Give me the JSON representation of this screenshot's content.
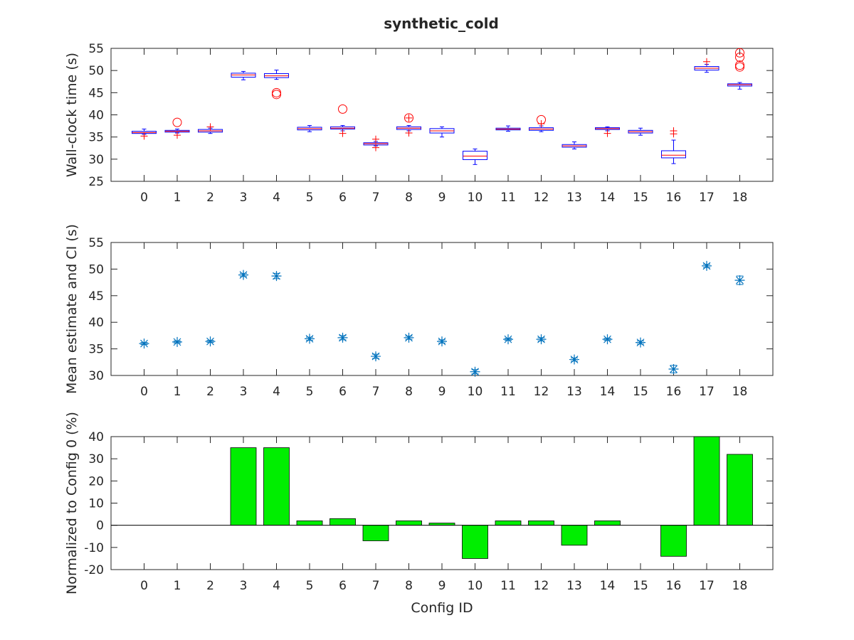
{
  "title": "synthetic_cold",
  "colors": {
    "box": "#0000ff",
    "median": "#ff0000",
    "outlier": "#ff0000",
    "mean": "#0072bd",
    "bar": "#00ee00",
    "axis": "#262626"
  },
  "chart_data": [
    {
      "type": "box",
      "title": "synthetic_cold",
      "xlabel": "",
      "ylabel": "Wall-clock time (s)",
      "xlim": [
        -1,
        19
      ],
      "ylim": [
        25,
        55
      ],
      "yticks": [
        25,
        30,
        35,
        40,
        45,
        50,
        55
      ],
      "categories": [
        "0",
        "1",
        "2",
        "3",
        "4",
        "5",
        "6",
        "7",
        "8",
        "9",
        "10",
        "11",
        "12",
        "13",
        "14",
        "15",
        "16",
        "17",
        "18"
      ],
      "boxes": [
        {
          "q1": 35.8,
          "median": 36.0,
          "q3": 36.3,
          "wl": 35.6,
          "wh": 36.8,
          "plus": [
            35.2
          ],
          "circle": []
        },
        {
          "q1": 36.1,
          "median": 36.3,
          "q3": 36.5,
          "wl": 35.9,
          "wh": 36.8,
          "plus": [
            35.4
          ],
          "circle": [
            38.3
          ]
        },
        {
          "q1": 36.1,
          "median": 36.4,
          "q3": 36.7,
          "wl": 35.8,
          "wh": 37.0,
          "plus": [
            37.3
          ],
          "circle": []
        },
        {
          "q1": 48.5,
          "median": 49.0,
          "q3": 49.4,
          "wl": 47.9,
          "wh": 49.8,
          "plus": [],
          "circle": []
        },
        {
          "q1": 48.4,
          "median": 48.8,
          "q3": 49.3,
          "wl": 48.0,
          "wh": 50.1,
          "plus": [],
          "circle": [
            45.0,
            44.6
          ]
        },
        {
          "q1": 36.6,
          "median": 36.9,
          "q3": 37.2,
          "wl": 36.2,
          "wh": 37.6,
          "plus": [],
          "circle": []
        },
        {
          "q1": 36.8,
          "median": 37.0,
          "q3": 37.3,
          "wl": 36.4,
          "wh": 37.6,
          "plus": [
            35.8
          ],
          "circle": [
            41.3
          ]
        },
        {
          "q1": 33.2,
          "median": 33.5,
          "q3": 33.7,
          "wl": 33.0,
          "wh": 34.0,
          "plus": [
            32.6,
            34.5
          ],
          "circle": []
        },
        {
          "q1": 36.7,
          "median": 37.0,
          "q3": 37.3,
          "wl": 36.4,
          "wh": 37.6,
          "plus": [
            35.9,
            39.3
          ],
          "circle": [
            39.3
          ]
        },
        {
          "q1": 35.9,
          "median": 36.4,
          "q3": 36.9,
          "wl": 35.0,
          "wh": 37.3,
          "plus": [],
          "circle": []
        },
        {
          "q1": 29.9,
          "median": 30.7,
          "q3": 31.8,
          "wl": 28.8,
          "wh": 32.3,
          "plus": [],
          "circle": []
        },
        {
          "q1": 36.6,
          "median": 36.8,
          "q3": 37.0,
          "wl": 36.3,
          "wh": 37.5,
          "plus": [],
          "circle": []
        },
        {
          "q1": 36.5,
          "median": 36.8,
          "q3": 37.1,
          "wl": 36.2,
          "wh": 37.5,
          "plus": [
            38.0
          ],
          "circle": [
            38.9
          ]
        },
        {
          "q1": 32.7,
          "median": 33.0,
          "q3": 33.3,
          "wl": 32.3,
          "wh": 33.9,
          "plus": [],
          "circle": []
        },
        {
          "q1": 36.7,
          "median": 36.9,
          "q3": 37.1,
          "wl": 36.4,
          "wh": 37.3,
          "plus": [
            35.8
          ],
          "circle": []
        },
        {
          "q1": 35.9,
          "median": 36.2,
          "q3": 36.5,
          "wl": 35.4,
          "wh": 37.0,
          "plus": [],
          "circle": []
        },
        {
          "q1": 30.3,
          "median": 30.9,
          "q3": 31.9,
          "wl": 29.0,
          "wh": 34.3,
          "plus": [
            36.4,
            35.7
          ],
          "circle": []
        },
        {
          "q1": 50.1,
          "median": 50.5,
          "q3": 50.9,
          "wl": 49.6,
          "wh": 51.4,
          "plus": [
            52.0
          ],
          "circle": []
        },
        {
          "q1": 46.5,
          "median": 46.8,
          "q3": 47.0,
          "wl": 45.8,
          "wh": 47.3,
          "plus": [],
          "circle": [
            54.0,
            53.0,
            51.2,
            50.8
          ]
        }
      ]
    },
    {
      "type": "scatter",
      "xlabel": "",
      "ylabel": "Mean estimate and CI (s)",
      "xlim": [
        -1,
        19
      ],
      "ylim": [
        30,
        55
      ],
      "yticks": [
        30,
        35,
        40,
        45,
        50,
        55
      ],
      "categories": [
        "0",
        "1",
        "2",
        "3",
        "4",
        "5",
        "6",
        "7",
        "8",
        "9",
        "10",
        "11",
        "12",
        "13",
        "14",
        "15",
        "16",
        "17",
        "18"
      ],
      "means": [
        36.0,
        36.3,
        36.4,
        48.9,
        48.7,
        36.9,
        37.1,
        33.6,
        37.1,
        36.4,
        30.7,
        36.8,
        36.8,
        33.0,
        36.8,
        36.2,
        31.2,
        50.6,
        47.9
      ],
      "ci_low": [
        35.8,
        36.1,
        36.2,
        48.6,
        48.2,
        36.6,
        36.7,
        33.2,
        36.8,
        36.1,
        30.3,
        36.6,
        36.5,
        32.7,
        36.6,
        35.9,
        30.5,
        50.3,
        47.1
      ],
      "ci_high": [
        36.2,
        36.5,
        36.6,
        49.2,
        49.2,
        37.2,
        37.5,
        34.0,
        37.4,
        36.7,
        31.1,
        37.0,
        37.1,
        33.3,
        37.0,
        36.5,
        31.9,
        50.9,
        48.7
      ]
    },
    {
      "type": "bar",
      "xlabel": "Config ID",
      "ylabel": "Normalized to Config 0 (%)",
      "xlim": [
        -1,
        19
      ],
      "ylim": [
        -20,
        40
      ],
      "yticks": [
        -20,
        -10,
        0,
        10,
        20,
        30,
        40
      ],
      "categories": [
        "0",
        "1",
        "2",
        "3",
        "4",
        "5",
        "6",
        "7",
        "8",
        "9",
        "10",
        "11",
        "12",
        "13",
        "14",
        "15",
        "16",
        "17",
        "18"
      ],
      "values": [
        0,
        0,
        0,
        35,
        35,
        2,
        3,
        -7,
        2,
        1,
        -15,
        2,
        2,
        -9,
        2,
        0,
        -14,
        40,
        32
      ]
    }
  ]
}
